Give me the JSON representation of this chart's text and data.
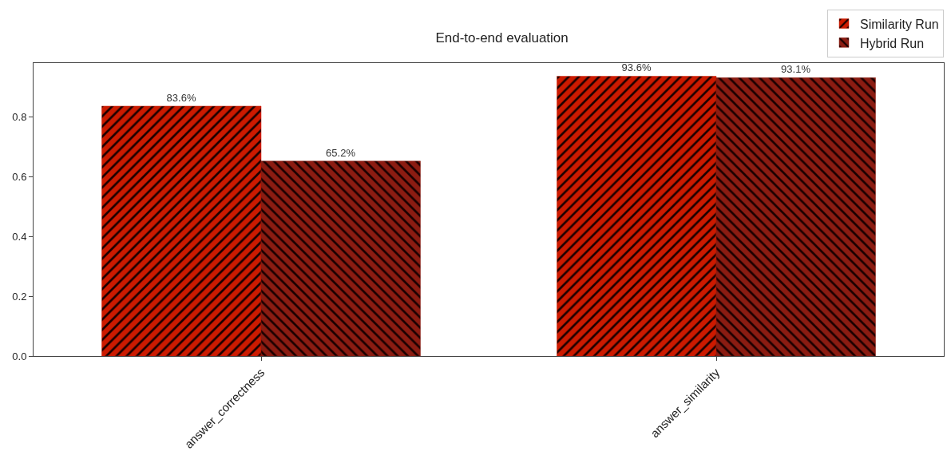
{
  "chart_data": {
    "type": "bar",
    "title": "End-to-end evaluation",
    "categories": [
      "answer_correctness",
      "answer_similarity"
    ],
    "series": [
      {
        "name": "Similarity Run",
        "color": "#cc1a00",
        "values": [
          0.836,
          0.936
        ],
        "value_labels": [
          "83.6%",
          "93.6%"
        ]
      },
      {
        "name": "Hybrid Run",
        "color": "#8b1c12",
        "values": [
          0.652,
          0.931
        ],
        "value_labels": [
          "65.2%",
          "93.1%"
        ]
      }
    ],
    "ylim": [
      0,
      0.98
    ],
    "yticks": [
      {
        "value": 0,
        "label": "0.0"
      },
      {
        "value": 0.2,
        "label": "0.2"
      },
      {
        "value": 0.4,
        "label": "0.4"
      },
      {
        "value": 0.6,
        "label": "0.6"
      },
      {
        "value": 0.8,
        "label": "0.8"
      }
    ],
    "grid": false,
    "legend": "top right"
  }
}
